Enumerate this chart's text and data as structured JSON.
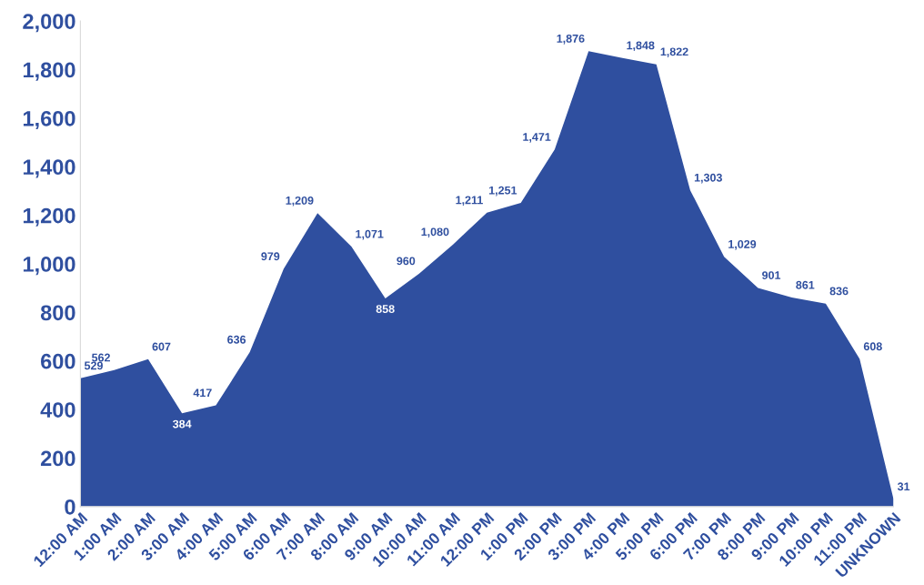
{
  "chart_data": {
    "type": "area",
    "categories": [
      "12:00 AM",
      "1:00 AM",
      "2:00 AM",
      "3:00 AM",
      "4:00 AM",
      "5:00 AM",
      "6:00 AM",
      "7:00 AM",
      "8:00 AM",
      "9:00 AM",
      "10:00 AM",
      "11:00 AM",
      "12:00 PM",
      "1:00 PM",
      "2:00 PM",
      "3:00 PM",
      "4:00 PM",
      "5:00 PM",
      "6:00 PM",
      "7:00 PM",
      "8:00 PM",
      "9:00 PM",
      "10:00 PM",
      "11:00 PM",
      "UNKNOWN"
    ],
    "series": [
      {
        "color": "#2f4f9f",
        "values": [
          529,
          562,
          607,
          384,
          417,
          636,
          979,
          1209,
          1071,
          858,
          960,
          1080,
          1211,
          1251,
          1471,
          1876,
          1848,
          1822,
          1303,
          1029,
          901,
          861,
          836,
          608,
          31
        ],
        "value_labels": [
          "529",
          "562",
          "607",
          "384",
          "417",
          "636",
          "979",
          "1,209",
          "1,071",
          "858",
          "960",
          "1,080",
          "1,211",
          "1,251",
          "1,471",
          "1,876",
          "1,848",
          "1,822",
          "1,303",
          "1,029",
          "901",
          "861",
          "836",
          "608",
          "31"
        ]
      }
    ],
    "ylim": [
      0,
      2000
    ],
    "yticks": [
      {
        "value": 0,
        "label": "0"
      },
      {
        "value": 200,
        "label": "200"
      },
      {
        "value": 400,
        "label": "400"
      },
      {
        "value": 600,
        "label": "600"
      },
      {
        "value": 800,
        "label": "800"
      },
      {
        "value": 1000,
        "label": "1,000"
      },
      {
        "value": 1200,
        "label": "1,200"
      },
      {
        "value": 1400,
        "label": "1,400"
      },
      {
        "value": 1600,
        "label": "1,600"
      },
      {
        "value": 1800,
        "label": "1,800"
      },
      {
        "value": 2000,
        "label": "2,000"
      }
    ],
    "grid": false,
    "legend": false
  }
}
